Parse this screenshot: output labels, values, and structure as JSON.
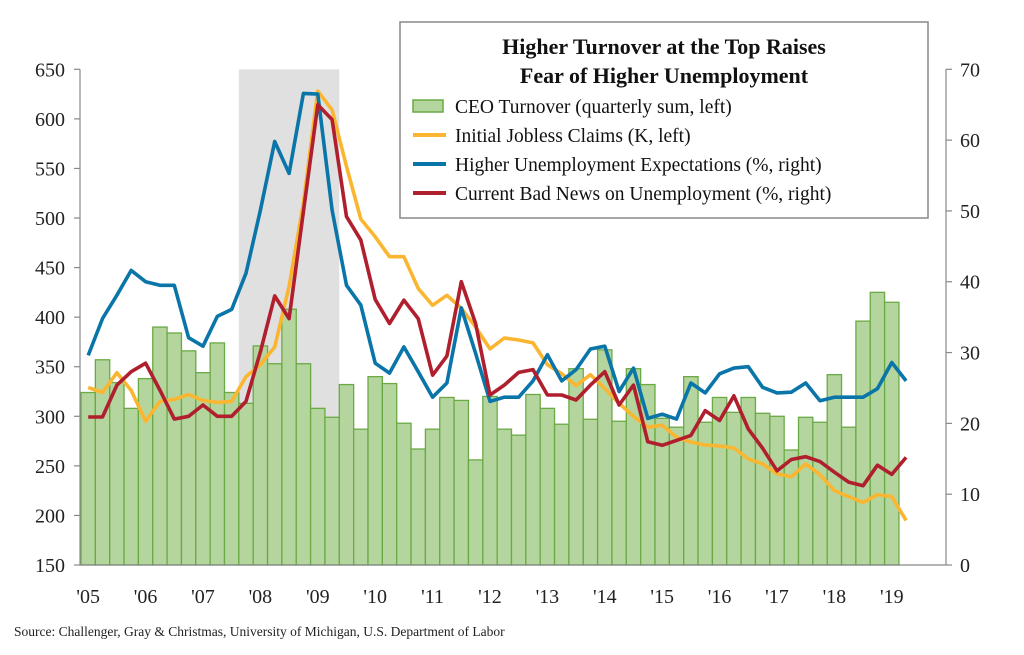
{
  "chart_data": {
    "type": "bar+line",
    "title": "Higher Turnover at the Top Raises Fear of Higher Unemployment",
    "title_lines": [
      "Higher Turnover at the Top Raises",
      "Fear of Higher Unemployment"
    ],
    "x_tick_labels": [
      "'05",
      "'06",
      "'07",
      "'08",
      "'09",
      "'10",
      "'11",
      "'12",
      "'13",
      "'14",
      "'15",
      "'16",
      "'17",
      "'18",
      "'19"
    ],
    "x_start": "2005Q1",
    "x_frequency": "quarterly",
    "left_axis": {
      "ylim": [
        150,
        650
      ],
      "ticks": [
        150,
        200,
        250,
        300,
        350,
        400,
        450,
        500,
        550,
        600,
        650
      ]
    },
    "right_axis": {
      "ylim": [
        0,
        70
      ],
      "ticks": [
        0,
        10,
        20,
        30,
        40,
        50,
        60,
        70
      ]
    },
    "recession_shading": {
      "start": "2007Q4",
      "end": "2009Q2",
      "color": "#e0e0e0"
    },
    "grid": false,
    "legend_placement": "top-right",
    "series": [
      {
        "name": "CEO Turnover (quarterly sum, left)",
        "type": "bar",
        "axis": "left",
        "color": "#b5d59e",
        "edge": "#6aaa45",
        "values": [
          324,
          357,
          334,
          308,
          338,
          390,
          384,
          366,
          344,
          374,
          324,
          313,
          371,
          353,
          408,
          353,
          308,
          299,
          332,
          287,
          340,
          333,
          293,
          267,
          287,
          319,
          316,
          256,
          320,
          287,
          281,
          322,
          308,
          292,
          348,
          297,
          367,
          295,
          348,
          332,
          298,
          289,
          340,
          294,
          319,
          304,
          319,
          303,
          300,
          266,
          299,
          294,
          342,
          289,
          396,
          425,
          415
        ]
      },
      {
        "name": "Initial Jobless Claims (K, left)",
        "type": "line",
        "axis": "left",
        "color": "#fbb631",
        "values": [
          329,
          324,
          344,
          326,
          295,
          315,
          317,
          322,
          316,
          314,
          315,
          340,
          352,
          370,
          431,
          515,
          628,
          609,
          552,
          499,
          481,
          461,
          461,
          429,
          412,
          422,
          409,
          390,
          368,
          379,
          377,
          374,
          352,
          343,
          331,
          342,
          328,
          313,
          300,
          289,
          291,
          279,
          274,
          271,
          270,
          268,
          257,
          252,
          242,
          239,
          252,
          241,
          225,
          219,
          213,
          221,
          219,
          195
        ]
      },
      {
        "name": "Higher Unemployment Expectations (%, right)",
        "type": "line",
        "axis": "right",
        "color": "#0a75a8",
        "values": [
          29.6,
          34.8,
          38.1,
          41.6,
          40.0,
          39.5,
          39.5,
          32.1,
          30.9,
          35.1,
          36.1,
          41.2,
          50.1,
          59.8,
          55.3,
          66.6,
          66.5,
          50.1,
          39.5,
          36.7,
          28.5,
          27.1,
          30.8,
          27.3,
          23.7,
          25.7,
          36.3,
          29.9,
          23.1,
          23.7,
          23.7,
          26.0,
          29.7,
          26.0,
          27.6,
          30.5,
          30.9,
          24.5,
          27.8,
          20.7,
          21.3,
          20.6,
          25.7,
          24.3,
          27.0,
          27.8,
          28.0,
          25.1,
          24.3,
          24.4,
          25.7,
          23.2,
          23.7,
          23.7,
          23.7,
          24.9,
          28.6,
          26.0
        ]
      },
      {
        "name": "Current Bad News on Unemployment (%, right)",
        "type": "line",
        "axis": "right",
        "color": "#b01f2e",
        "values": [
          20.9,
          20.9,
          25.4,
          27.3,
          28.5,
          24.7,
          20.6,
          21.0,
          22.6,
          21.0,
          21.0,
          23.1,
          30.1,
          38.0,
          34.8,
          49.9,
          65.0,
          62.9,
          49.2,
          45.9,
          37.5,
          34.1,
          37.4,
          34.8,
          26.8,
          29.5,
          40.0,
          34.1,
          24.0,
          25.4,
          27.2,
          27.6,
          24.0,
          24.0,
          23.3,
          25.4,
          27.3,
          22.6,
          25.4,
          17.4,
          16.9,
          17.6,
          18.3,
          21.8,
          20.4,
          23.9,
          19.2,
          16.5,
          13.3,
          14.9,
          15.3,
          14.6,
          13.1,
          11.7,
          11.2,
          14.1,
          12.8,
          15.2
        ]
      }
    ]
  },
  "source": "Source: Challenger, Gray & Christmas, University of Michigan, U.S. Department of Labor"
}
